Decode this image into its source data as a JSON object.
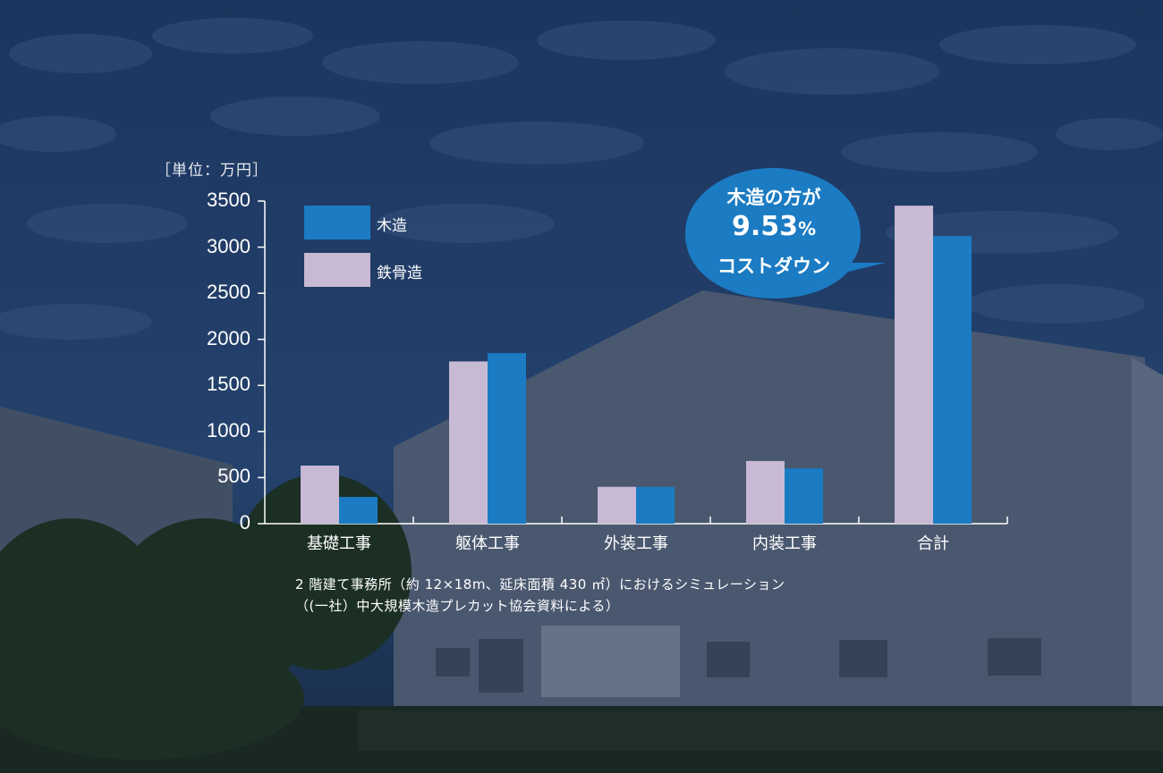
{
  "chart_data": {
    "type": "bar",
    "unit_label": "［単位：万円］",
    "categories": [
      "基礎工事",
      "躯体工事",
      "外装工事",
      "内装工事",
      "合計"
    ],
    "series": [
      {
        "name": "鉄骨造",
        "color": "#c8b9d4",
        "values": [
          630,
          1760,
          400,
          680,
          3450
        ]
      },
      {
        "name": "木造",
        "color": "#1b7bc3",
        "values": [
          290,
          1850,
          400,
          600,
          3120
        ]
      }
    ],
    "ylim": [
      0,
      3500
    ],
    "yticks": [
      "0",
      "500",
      "1000",
      "1500",
      "2000",
      "2500",
      "3000",
      "3500"
    ],
    "grid": false,
    "legend_position": "top-left"
  },
  "callout": {
    "line1": "木造の方が",
    "line2": "9.53",
    "line2_suffix": "%",
    "line3": "コストダウン",
    "color": "#1b7bc3"
  },
  "notes": {
    "line1": "2 階建て事務所（約 12×18m、延床面積 430 ㎡）におけるシミュレーション",
    "line2": "（(一社）中大規模木造プレカット協会資料による）"
  }
}
